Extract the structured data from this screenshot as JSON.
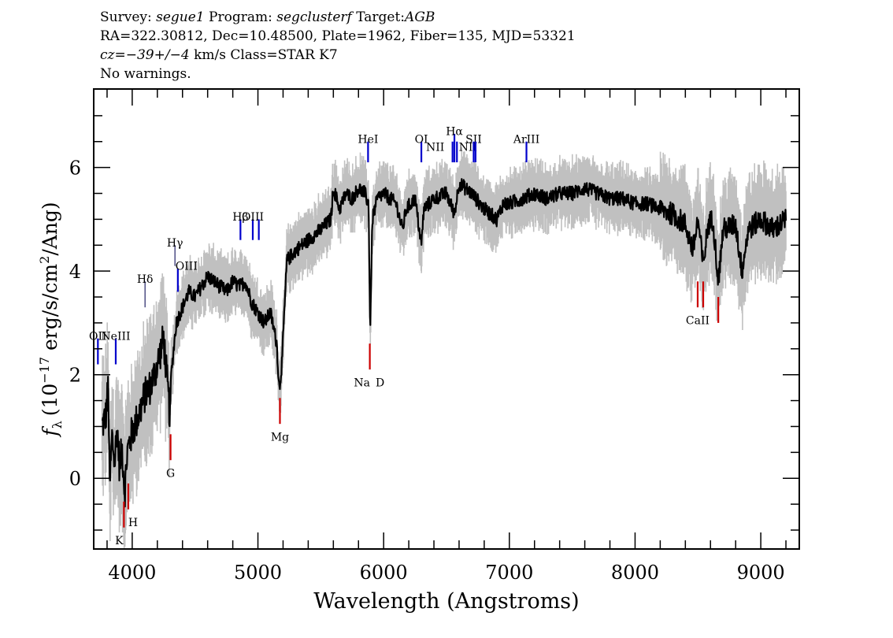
{
  "header": {
    "survey_label": "Survey:",
    "survey": "segue1",
    "program_label": "Program:",
    "program": "segclusterf",
    "target_label": "Target:",
    "target": "AGB",
    "line2": "RA=322.30812, Dec=10.48500, Plate=1962, Fiber=135, MJD=53321",
    "cz_label": "cz=",
    "cz_value": "−39+/−4",
    "cz_unit": "km/s Class=STAR K7",
    "line4": "No warnings."
  },
  "chart_data": {
    "type": "line",
    "xlabel": "Wavelength (Angstroms)",
    "ylabel_symbol": "f",
    "ylabel_sub": "λ",
    "ylabel_pre": "(10",
    "ylabel_exp": "−17",
    "ylabel_mid": " erg/s/cm",
    "ylabel_exp2": "2",
    "ylabel_post": "/Ang)",
    "xlim": [
      3700,
      9300
    ],
    "ylim": [
      -1.35,
      7.5
    ],
    "x_ticks": [
      4000,
      5000,
      6000,
      7000,
      8000,
      9000
    ],
    "x_tick_labels": [
      "4000",
      "5000",
      "6000",
      "7000",
      "8000",
      "9000"
    ],
    "y_ticks": [
      0,
      2,
      4,
      6
    ],
    "y_tick_labels": [
      "0",
      "2",
      "4",
      "6"
    ],
    "colors": {
      "spectrum": "#000000",
      "error": "#c0c0c0",
      "emission": "#0000cc",
      "absorption": "#cc0000"
    },
    "series": [
      {
        "role": "flux",
        "anchors": [
          [
            3760,
            1.0
          ],
          [
            3790,
            1.2
          ],
          [
            3810,
            1.8
          ],
          [
            3820,
            -0.2
          ],
          [
            3840,
            0.8
          ],
          [
            3860,
            0.3
          ],
          [
            3880,
            1.0
          ],
          [
            3900,
            0.2
          ],
          [
            3920,
            0.6
          ],
          [
            3940,
            -0.3
          ],
          [
            3960,
            0.5
          ],
          [
            3980,
            0.7
          ],
          [
            4000,
            0.9
          ],
          [
            4050,
            1.2
          ],
          [
            4100,
            1.6
          ],
          [
            4150,
            1.8
          ],
          [
            4200,
            2.2
          ],
          [
            4250,
            2.7
          ],
          [
            4300,
            1.2
          ],
          [
            4310,
            2.0
          ],
          [
            4350,
            3.0
          ],
          [
            4400,
            3.3
          ],
          [
            4450,
            3.6
          ],
          [
            4500,
            3.5
          ],
          [
            4550,
            3.7
          ],
          [
            4600,
            3.9
          ],
          [
            4650,
            3.8
          ],
          [
            4700,
            3.7
          ],
          [
            4750,
            3.6
          ],
          [
            4800,
            3.8
          ],
          [
            4850,
            3.7
          ],
          [
            4900,
            3.8
          ],
          [
            4950,
            3.4
          ],
          [
            5000,
            3.2
          ],
          [
            5050,
            3.0
          ],
          [
            5100,
            3.2
          ],
          [
            5150,
            2.6
          ],
          [
            5170,
            1.7
          ],
          [
            5190,
            2.2
          ],
          [
            5230,
            4.2
          ],
          [
            5300,
            4.4
          ],
          [
            5400,
            4.6
          ],
          [
            5500,
            4.8
          ],
          [
            5580,
            5.0
          ],
          [
            5600,
            5.6
          ],
          [
            5650,
            5.2
          ],
          [
            5700,
            5.5
          ],
          [
            5750,
            5.4
          ],
          [
            5800,
            5.6
          ],
          [
            5850,
            5.5
          ],
          [
            5880,
            5.3
          ],
          [
            5893,
            2.8
          ],
          [
            5910,
            5.0
          ],
          [
            5950,
            5.4
          ],
          [
            6000,
            5.5
          ],
          [
            6050,
            5.4
          ],
          [
            6100,
            5.3
          ],
          [
            6150,
            4.8
          ],
          [
            6180,
            5.2
          ],
          [
            6250,
            5.4
          ],
          [
            6300,
            4.5
          ],
          [
            6320,
            5.2
          ],
          [
            6400,
            5.4
          ],
          [
            6500,
            5.5
          ],
          [
            6563,
            5.1
          ],
          [
            6600,
            5.7
          ],
          [
            6700,
            5.5
          ],
          [
            6800,
            5.2
          ],
          [
            6850,
            5.1
          ],
          [
            6900,
            5.0
          ],
          [
            6950,
            5.3
          ],
          [
            7000,
            5.3
          ],
          [
            7100,
            5.4
          ],
          [
            7200,
            5.5
          ],
          [
            7300,
            5.4
          ],
          [
            7400,
            5.5
          ],
          [
            7500,
            5.5
          ],
          [
            7600,
            5.6
          ],
          [
            7700,
            5.5
          ],
          [
            7800,
            5.4
          ],
          [
            7900,
            5.4
          ],
          [
            8000,
            5.3
          ],
          [
            8100,
            5.3
          ],
          [
            8200,
            5.2
          ],
          [
            8300,
            5.1
          ],
          [
            8400,
            4.9
          ],
          [
            8460,
            4.4
          ],
          [
            8500,
            5.0
          ],
          [
            8542,
            4.1
          ],
          [
            8580,
            4.9
          ],
          [
            8620,
            5.0
          ],
          [
            8662,
            3.8
          ],
          [
            8700,
            4.8
          ],
          [
            8800,
            4.9
          ],
          [
            8850,
            4.0
          ],
          [
            8900,
            4.8
          ],
          [
            9000,
            5.0
          ],
          [
            9100,
            4.8
          ],
          [
            9200,
            5.0
          ]
        ]
      }
    ],
    "line_markers": [
      {
        "label": "OII",
        "wave": 3727,
        "kind": "emission",
        "y1": 2.2,
        "y2": 2.7,
        "label_y": 2.75
      },
      {
        "label": "NeIII",
        "wave": 3869,
        "kind": "emission",
        "y1": 2.2,
        "y2": 2.7,
        "label_y": 2.75
      },
      {
        "label": "Hδ",
        "wave": 4102,
        "kind": "emission_thin",
        "y1": 3.3,
        "y2": 3.8,
        "label_y": 3.85
      },
      {
        "label": "Hγ",
        "wave": 4340,
        "kind": "emission_thin",
        "y1": 4.1,
        "y2": 4.5,
        "label_y": 4.55
      },
      {
        "label": "OIII",
        "wave": 4363,
        "kind": "emission",
        "y1": 3.6,
        "y2": 4.05,
        "label_y": 4.1
      },
      {
        "label": "Hβ",
        "wave": 4861,
        "kind": "emission",
        "y1": 4.6,
        "y2": 5.0,
        "label_y": 5.05
      },
      {
        "label": "OIII",
        "wave": 4959,
        "kind": "emission",
        "y1": 4.6,
        "y2": 5.0,
        "label_y": 5.05
      },
      {
        "label": "",
        "wave": 5007,
        "kind": "emission",
        "y1": 4.6,
        "y2": 5.0,
        "label_y": 5.05
      },
      {
        "label": "HeI",
        "wave": 5876,
        "kind": "emission",
        "y1": 6.1,
        "y2": 6.5,
        "label_y": 6.55
      },
      {
        "label": "OI",
        "wave": 6300,
        "kind": "emission",
        "y1": 6.1,
        "y2": 6.5,
        "label_y": 6.55
      },
      {
        "label": "NII",
        "wave": 6548,
        "kind": "emission",
        "y1": 6.1,
        "y2": 6.5,
        "label_y": 6.4
      },
      {
        "label": "Hα",
        "wave": 6563,
        "kind": "emission",
        "y1": 6.1,
        "y2": 6.65,
        "label_y": 6.7
      },
      {
        "label": "NII",
        "wave": 6583,
        "kind": "emission",
        "y1": 6.1,
        "y2": 6.5,
        "label_y": 6.4
      },
      {
        "label": "SII",
        "wave": 6716,
        "kind": "emission",
        "y1": 6.1,
        "y2": 6.5,
        "label_y": 6.55
      },
      {
        "label": "",
        "wave": 6731,
        "kind": "emission",
        "y1": 6.1,
        "y2": 6.5,
        "label_y": 6.55
      },
      {
        "label": "ArIII",
        "wave": 7136,
        "kind": "emission",
        "y1": 6.1,
        "y2": 6.5,
        "label_y": 6.55
      },
      {
        "label": "K",
        "wave": 3934,
        "kind": "absorption",
        "y1": -0.95,
        "y2": -0.45,
        "label_y": -1.2
      },
      {
        "label": "H",
        "wave": 3969,
        "kind": "absorption",
        "y1": -0.6,
        "y2": -0.1,
        "label_y": -0.85
      },
      {
        "label": "G",
        "wave": 4305,
        "kind": "absorption",
        "y1": 0.35,
        "y2": 0.85,
        "label_y": 0.1
      },
      {
        "label": "Mg",
        "wave": 5175,
        "kind": "absorption",
        "y1": 1.05,
        "y2": 1.55,
        "label_y": 0.8
      },
      {
        "label": "Na",
        "wave": 5890,
        "kind": "absorption",
        "y1": 2.1,
        "y2": 2.6,
        "label_y": 1.85
      },
      {
        "label": "D",
        "wave": 5896,
        "kind": "absorption_nomark",
        "y1": 2.1,
        "y2": 2.6,
        "label_y": 1.85
      },
      {
        "label": "CaII",
        "wave": 8498,
        "kind": "absorption",
        "y1": 3.3,
        "y2": 3.8,
        "label_y": 3.05
      },
      {
        "label": "",
        "wave": 8542,
        "kind": "absorption",
        "y1": 3.3,
        "y2": 3.8,
        "label_y": 3.05
      },
      {
        "label": "",
        "wave": 8662,
        "kind": "absorption",
        "y1": 3.0,
        "y2": 3.5,
        "label_y": 2.8
      }
    ]
  }
}
